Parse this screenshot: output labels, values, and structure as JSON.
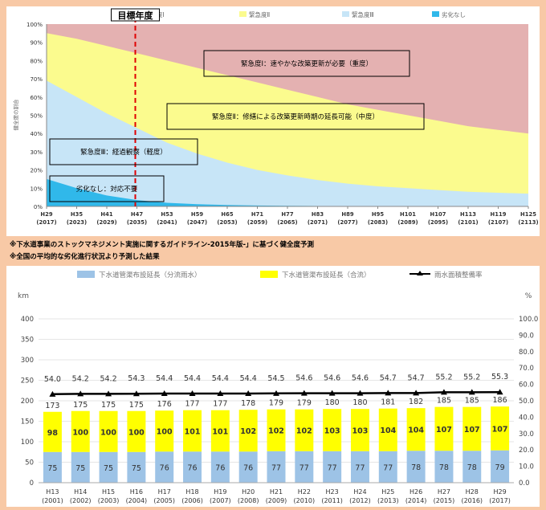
{
  "notes": [
    "※下水道事業のストックマネジメント実施に関するガイドライン-2015年版-」に基づく健全度予測",
    "※全国の平均的な劣化進行状況より予測した結果"
  ],
  "chart_data": [
    {
      "type": "area",
      "target_year_label": "目標年度",
      "target_year_index": 3,
      "ylabel": "健全度の割合",
      "yticks": [
        "0%",
        "10%",
        "20%",
        "30%",
        "40%",
        "50%",
        "60%",
        "70%",
        "80%",
        "90%",
        "100%"
      ],
      "ylim": [
        0,
        100
      ],
      "x_top": [
        "H29",
        "H35",
        "H41",
        "H47",
        "H53",
        "H59",
        "H65",
        "H71",
        "H77",
        "H83",
        "H89",
        "H95",
        "H101",
        "H107",
        "H113",
        "H119",
        "H125"
      ],
      "x_bottom": [
        "(2017)",
        "(2023)",
        "(2029)",
        "(2035)",
        "(2041)",
        "(2047)",
        "(2053)",
        "(2059)",
        "(2065)",
        "(2071)",
        "(2077)",
        "(2083)",
        "(2089)",
        "(2095)",
        "(2101)",
        "(2107)",
        "(2113)"
      ],
      "legend": [
        {
          "label": "緊急度Ⅰ",
          "color": "#e4b1b1"
        },
        {
          "label": "緊急度Ⅱ",
          "color": "#fbfb8e"
        },
        {
          "label": "緊急度Ⅲ",
          "color": "#c7e5f7"
        },
        {
          "label": "劣化なし",
          "color": "#30b8ea"
        }
      ],
      "series_cumulative": [
        {
          "name": "劣化なし",
          "values": [
            15,
            10,
            6,
            3.5,
            2,
            1.2,
            0.8,
            0.5,
            0.3,
            0.2,
            0.1,
            0.1,
            0,
            0,
            0,
            0,
            0
          ]
        },
        {
          "name": "緊急度Ⅲ",
          "values": [
            69,
            60,
            51,
            43,
            35,
            29,
            24,
            20,
            17,
            14.5,
            12.5,
            11,
            10,
            9,
            8,
            7.5,
            7
          ]
        },
        {
          "name": "緊急度Ⅱ",
          "values": [
            95,
            92,
            88,
            84,
            80,
            76,
            72,
            68,
            64,
            60,
            56,
            53,
            50,
            47,
            44,
            42,
            40
          ]
        }
      ],
      "annotations": [
        "緊急度Ⅰ：速やかな改築更新が必要（重度）",
        "緊急度Ⅱ：修繕による改築更新時期の延長可能（中度）",
        "緊急度Ⅲ：経過観察（軽度）",
        "劣化なし：対応不要"
      ]
    },
    {
      "type": "bar",
      "legend": [
        {
          "label": "下水道管渠布設延長（分流雨水）",
          "color": "#9dc3e6"
        },
        {
          "label": "下水道管渠布設延長（合流）",
          "color": "#ffff00"
        },
        {
          "label": "雨水面積整備率",
          "color": "#000000"
        }
      ],
      "ylabel_left": "km",
      "ylabel_right": "%",
      "yticks_left": [
        "0",
        "50",
        "100",
        "150",
        "200",
        "250",
        "300",
        "350",
        "400"
      ],
      "yticks_right": [
        "0.0",
        "10.0",
        "20.0",
        "30.0",
        "40.0",
        "50.0",
        "60.0",
        "70.0",
        "80.0",
        "90.0",
        "100.0"
      ],
      "ylim_left": [
        0,
        400
      ],
      "ylim_right": [
        0,
        100
      ],
      "x_top": [
        "H13",
        "H14",
        "H15",
        "H16",
        "H17",
        "H18",
        "H19",
        "H20",
        "H21",
        "H22",
        "H23",
        "H24",
        "H25",
        "H26",
        "H27",
        "H28",
        "H29"
      ],
      "x_bottom": [
        "(2001)",
        "(2002)",
        "(2003)",
        "(2004)",
        "(2005)",
        "(2006)",
        "(2007)",
        "(2008)",
        "(2009)",
        "(2010)",
        "(2011)",
        "(2012)",
        "(2013)",
        "(2014)",
        "(2015)",
        "(2016)",
        "(2017)"
      ],
      "series": [
        {
          "name": "下水道管渠布設延長（分流雨水）",
          "values": [
            75,
            75,
            75,
            75,
            76,
            76,
            76,
            76,
            77,
            77,
            77,
            77,
            77,
            78,
            78,
            78,
            79
          ]
        },
        {
          "name": "下水道管渠布設延長（合流）",
          "values": [
            98,
            100,
            100,
            100,
            100,
            101,
            101,
            102,
            102,
            102,
            103,
            103,
            104,
            104,
            107,
            107,
            107
          ]
        },
        {
          "name": "雨水面積整備率",
          "values": [
            54.0,
            54.2,
            54.2,
            54.3,
            54.4,
            54.4,
            54.4,
            54.4,
            54.5,
            54.6,
            54.6,
            54.6,
            54.7,
            54.7,
            55.2,
            55.2,
            55.3
          ]
        }
      ],
      "totals": [
        173,
        175,
        175,
        175,
        176,
        177,
        177,
        178,
        179,
        179,
        180,
        180,
        181,
        182,
        185,
        185,
        186
      ],
      "rate_labels": [
        "54.0",
        "54.2",
        "54.2",
        "54.3",
        "54.4",
        "54.4",
        "54.4",
        "54.4",
        "54.5",
        "54.6",
        "54.6",
        "54.6",
        "54.7",
        "54.7",
        "55.2",
        "55.2",
        "55.3"
      ]
    }
  ]
}
